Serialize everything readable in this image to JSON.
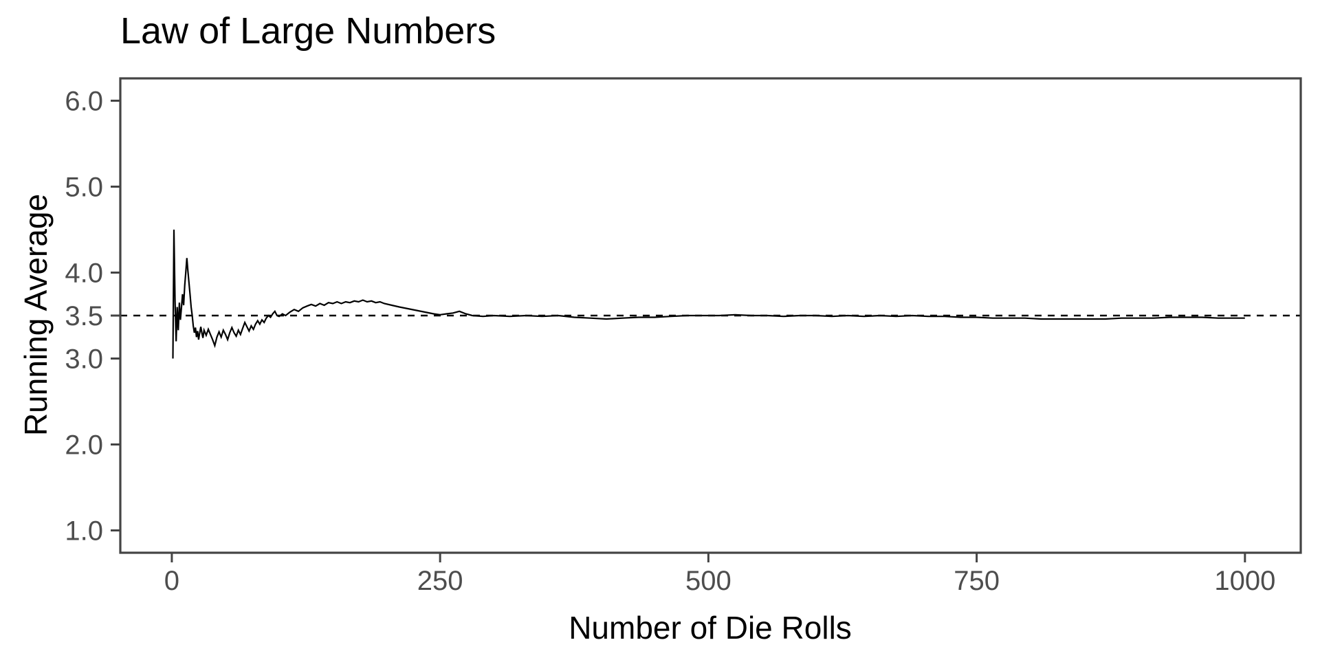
{
  "figure": {
    "title": "Law of Large Numbers"
  },
  "chart_data": {
    "type": "line",
    "title": "Law of Large Numbers",
    "xlabel": "Number of Die Rolls",
    "ylabel": "Running Average",
    "xlim": [
      -48,
      1052
    ],
    "ylim": [
      0.74,
      6.26
    ],
    "grid": false,
    "legend": "none",
    "x_ticks": [
      {
        "value": 0,
        "label": "0"
      },
      {
        "value": 250,
        "label": "250"
      },
      {
        "value": 500,
        "label": "500"
      },
      {
        "value": 750,
        "label": "750"
      },
      {
        "value": 1000,
        "label": "1000"
      }
    ],
    "y_ticks": [
      {
        "value": 1.0,
        "label": "1.0"
      },
      {
        "value": 2.0,
        "label": "2.0"
      },
      {
        "value": 3.0,
        "label": "3.0"
      },
      {
        "value": 3.5,
        "label": "3.5"
      },
      {
        "value": 4.0,
        "label": "4.0"
      },
      {
        "value": 5.0,
        "label": "5.0"
      },
      {
        "value": 6.0,
        "label": "6.0"
      }
    ],
    "reference_line": {
      "y": 3.5,
      "style": "dashed",
      "color": "#000000"
    },
    "series": [
      {
        "name": "running-average",
        "color": "#000000",
        "points": [
          [
            1,
            3.0
          ],
          [
            2,
            4.5
          ],
          [
            3,
            3.67
          ],
          [
            4,
            3.2
          ],
          [
            5,
            3.6
          ],
          [
            6,
            3.33
          ],
          [
            7,
            3.65
          ],
          [
            8,
            3.45
          ],
          [
            9,
            3.6
          ],
          [
            10,
            3.75
          ],
          [
            11,
            3.62
          ],
          [
            12,
            3.85
          ],
          [
            13,
            4.0
          ],
          [
            14,
            4.17
          ],
          [
            15,
            4.02
          ],
          [
            16,
            3.88
          ],
          [
            17,
            3.74
          ],
          [
            18,
            3.6
          ],
          [
            19,
            3.5
          ],
          [
            20,
            3.38
          ],
          [
            21,
            3.3
          ],
          [
            22,
            3.36
          ],
          [
            23,
            3.25
          ],
          [
            24,
            3.32
          ],
          [
            25,
            3.22
          ],
          [
            26,
            3.3
          ],
          [
            27,
            3.37
          ],
          [
            28,
            3.3
          ],
          [
            29,
            3.24
          ],
          [
            30,
            3.33
          ],
          [
            32,
            3.27
          ],
          [
            34,
            3.34
          ],
          [
            36,
            3.28
          ],
          [
            38,
            3.22
          ],
          [
            40,
            3.15
          ],
          [
            42,
            3.25
          ],
          [
            44,
            3.31
          ],
          [
            46,
            3.25
          ],
          [
            48,
            3.33
          ],
          [
            50,
            3.28
          ],
          [
            52,
            3.22
          ],
          [
            54,
            3.3
          ],
          [
            56,
            3.36
          ],
          [
            58,
            3.3
          ],
          [
            60,
            3.26
          ],
          [
            62,
            3.33
          ],
          [
            64,
            3.28
          ],
          [
            66,
            3.35
          ],
          [
            68,
            3.42
          ],
          [
            70,
            3.37
          ],
          [
            72,
            3.32
          ],
          [
            74,
            3.38
          ],
          [
            76,
            3.34
          ],
          [
            78,
            3.4
          ],
          [
            80,
            3.44
          ],
          [
            82,
            3.4
          ],
          [
            84,
            3.45
          ],
          [
            86,
            3.42
          ],
          [
            88,
            3.47
          ],
          [
            90,
            3.5
          ],
          [
            92,
            3.48
          ],
          [
            94,
            3.52
          ],
          [
            96,
            3.55
          ],
          [
            98,
            3.5
          ],
          [
            100,
            3.49
          ],
          [
            103,
            3.52
          ],
          [
            106,
            3.5
          ],
          [
            110,
            3.54
          ],
          [
            114,
            3.57
          ],
          [
            118,
            3.55
          ],
          [
            122,
            3.59
          ],
          [
            126,
            3.61
          ],
          [
            130,
            3.63
          ],
          [
            134,
            3.61
          ],
          [
            138,
            3.64
          ],
          [
            142,
            3.62
          ],
          [
            146,
            3.65
          ],
          [
            150,
            3.64
          ],
          [
            154,
            3.66
          ],
          [
            158,
            3.64
          ],
          [
            162,
            3.66
          ],
          [
            166,
            3.65
          ],
          [
            170,
            3.67
          ],
          [
            174,
            3.66
          ],
          [
            178,
            3.68
          ],
          [
            182,
            3.66
          ],
          [
            186,
            3.67
          ],
          [
            190,
            3.65
          ],
          [
            194,
            3.66
          ],
          [
            198,
            3.64
          ],
          [
            205,
            3.62
          ],
          [
            212,
            3.6
          ],
          [
            220,
            3.58
          ],
          [
            228,
            3.56
          ],
          [
            236,
            3.54
          ],
          [
            244,
            3.52
          ],
          [
            250,
            3.51
          ],
          [
            256,
            3.52
          ],
          [
            262,
            3.53
          ],
          [
            268,
            3.55
          ],
          [
            274,
            3.52
          ],
          [
            280,
            3.5
          ],
          [
            290,
            3.49
          ],
          [
            300,
            3.5
          ],
          [
            315,
            3.49
          ],
          [
            330,
            3.5
          ],
          [
            345,
            3.49
          ],
          [
            360,
            3.5
          ],
          [
            375,
            3.48
          ],
          [
            390,
            3.47
          ],
          [
            405,
            3.46
          ],
          [
            420,
            3.47
          ],
          [
            435,
            3.48
          ],
          [
            450,
            3.48
          ],
          [
            465,
            3.49
          ],
          [
            480,
            3.5
          ],
          [
            495,
            3.5
          ],
          [
            510,
            3.5
          ],
          [
            525,
            3.51
          ],
          [
            540,
            3.5
          ],
          [
            555,
            3.5
          ],
          [
            570,
            3.49
          ],
          [
            585,
            3.5
          ],
          [
            600,
            3.5
          ],
          [
            615,
            3.49
          ],
          [
            630,
            3.5
          ],
          [
            645,
            3.49
          ],
          [
            660,
            3.5
          ],
          [
            675,
            3.49
          ],
          [
            690,
            3.5
          ],
          [
            705,
            3.49
          ],
          [
            720,
            3.49
          ],
          [
            735,
            3.48
          ],
          [
            750,
            3.48
          ],
          [
            765,
            3.47
          ],
          [
            780,
            3.47
          ],
          [
            795,
            3.47
          ],
          [
            810,
            3.46
          ],
          [
            825,
            3.46
          ],
          [
            840,
            3.46
          ],
          [
            855,
            3.46
          ],
          [
            870,
            3.46
          ],
          [
            885,
            3.47
          ],
          [
            900,
            3.47
          ],
          [
            915,
            3.47
          ],
          [
            930,
            3.48
          ],
          [
            945,
            3.48
          ],
          [
            960,
            3.48
          ],
          [
            975,
            3.47
          ],
          [
            990,
            3.47
          ],
          [
            1000,
            3.47
          ]
        ]
      }
    ],
    "colors": {
      "line": "#000000",
      "reference_line": "#000000",
      "axis": "#444444",
      "tick_label": "#4d4d4d",
      "title": "#000000",
      "background": "#ffffff"
    }
  }
}
